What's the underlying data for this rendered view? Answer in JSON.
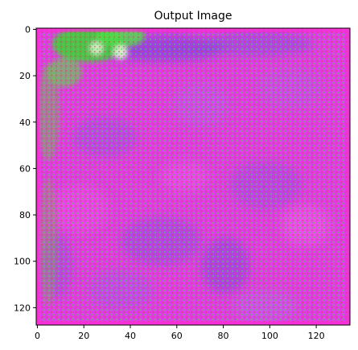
{
  "chart_data": {
    "type": "heatmap",
    "title": "Output Image",
    "xlabel": "",
    "ylabel": "",
    "image_width": 135,
    "image_height": 128,
    "xlim": [
      -0.5,
      134.5
    ],
    "ylim": [
      127.5,
      -0.5
    ],
    "x_ticks": [
      0,
      20,
      40,
      60,
      80,
      100,
      120
    ],
    "y_ticks": [
      0,
      20,
      40,
      60,
      80,
      100,
      120
    ],
    "x_tick_labels": [
      "0",
      "20",
      "40",
      "60",
      "80",
      "100",
      "120"
    ],
    "y_tick_labels": [
      "0",
      "20",
      "40",
      "60",
      "80",
      "100",
      "120"
    ],
    "grid": false,
    "colors": {
      "dominant": "#e53ae8",
      "secondary": "#9a46e6",
      "accent_green": "#4fd843",
      "noise_red": "#d2443c",
      "border": "#ff2ad4"
    }
  }
}
